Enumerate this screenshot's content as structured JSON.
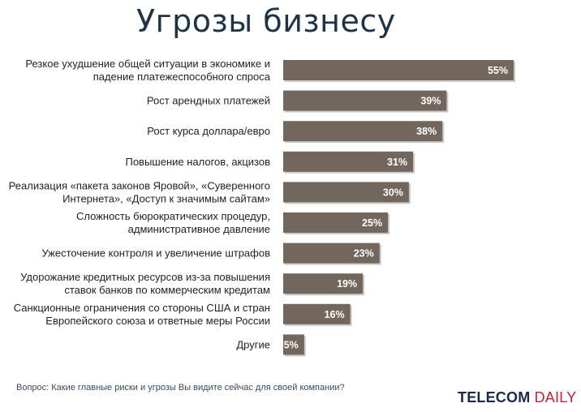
{
  "chart_data": {
    "type": "bar",
    "orientation": "horizontal",
    "title": "Угрозы бизнесу",
    "categories": [
      [
        "Резкое ухудшение общей ситуации в экономике и",
        "падение платежеспособного спроса"
      ],
      [
        "Рост арендных платежей"
      ],
      [
        "Рост курса доллара/евро"
      ],
      [
        "Повышение налогов, акцизов"
      ],
      [
        "Реализация «пакета законов Яровой», «Суверенного",
        "Интернета», «Доступ к значимым сайтам»"
      ],
      [
        "Сложность бюрократических процедур,",
        "административное давление"
      ],
      [
        "Ужесточение контроля и увеличение штрафов"
      ],
      [
        "Удорожание кредитных ресурсов из-за повышения",
        "ставок банков по коммерческим кредитам"
      ],
      [
        "Санкционные ограничения со стороны США и стран",
        "Европейского союза и ответные меры России"
      ],
      [
        "Другие"
      ]
    ],
    "values": [
      55,
      39,
      38,
      31,
      30,
      25,
      23,
      19,
      16,
      5
    ],
    "value_labels": [
      "55%",
      "39%",
      "38%",
      "31%",
      "30%",
      "25%",
      "23%",
      "19%",
      "16%",
      "5%"
    ],
    "xlim": [
      0,
      55
    ],
    "xlabel": "",
    "ylabel": ""
  },
  "footer": {
    "question": "Вопрос: Какие главные риски и угрозы Вы видите сейчас для своей компании?",
    "logo_part1": "TELECOM ",
    "logo_part2": "DAILY"
  },
  "colors": {
    "bar": "#73675d",
    "title": "#1e3346",
    "logo_red": "#c8202e"
  }
}
